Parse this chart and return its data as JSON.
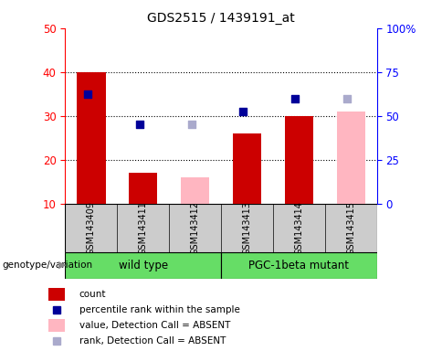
{
  "title": "GDS2515 / 1439191_at",
  "samples": [
    "GSM143409",
    "GSM143411",
    "GSM143412",
    "GSM143413",
    "GSM143414",
    "GSM143415"
  ],
  "bar_values": [
    40,
    17,
    16,
    26,
    30,
    31
  ],
  "bar_absent": [
    false,
    false,
    true,
    false,
    false,
    true
  ],
  "rank_values": [
    35,
    28,
    28,
    31,
    34,
    34
  ],
  "rank_absent": [
    false,
    false,
    true,
    false,
    false,
    true
  ],
  "ylim_left": [
    10,
    50
  ],
  "ylim_right": [
    0,
    100
  ],
  "yticks_left": [
    10,
    20,
    30,
    40,
    50
  ],
  "yticks_right": [
    0,
    25,
    50,
    75,
    100
  ],
  "ytick_labels_right": [
    "0",
    "25",
    "50",
    "75",
    "100%"
  ],
  "bar_color_present": "#CC0000",
  "bar_color_absent": "#FFB6C1",
  "rank_color_present": "#000099",
  "rank_color_absent": "#AAAACC",
  "bar_width": 0.55,
  "background_plot": "#ffffff",
  "background_label": "#cccccc",
  "genotype_label": "genotype/variation",
  "group_wt_label": "wild type",
  "group_pgc_label": "PGC-1beta mutant",
  "group_color": "#66DD66",
  "legend_items": [
    {
      "label": "count",
      "color": "#CC0000",
      "style": "bar"
    },
    {
      "label": "percentile rank within the sample",
      "color": "#000099",
      "style": "square"
    },
    {
      "label": "value, Detection Call = ABSENT",
      "color": "#FFB6C1",
      "style": "bar"
    },
    {
      "label": "rank, Detection Call = ABSENT",
      "color": "#AAAACC",
      "style": "square"
    }
  ]
}
